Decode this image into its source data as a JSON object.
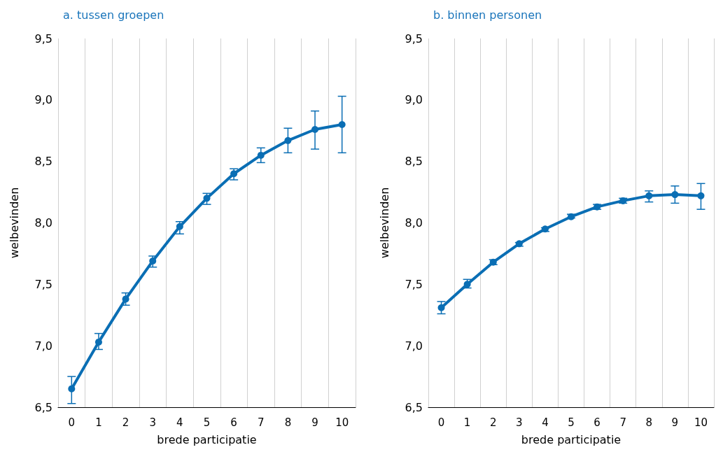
{
  "chart_data": [
    {
      "type": "line",
      "title": "a. tussen groepen",
      "xlabel": "brede participatie",
      "ylabel": "welbevinden",
      "categories": [
        "0",
        "1",
        "2",
        "3",
        "4",
        "5",
        "6",
        "7",
        "8",
        "9",
        "10"
      ],
      "series": [
        {
          "color": "#0a6eb4",
          "values": [
            6.65,
            7.03,
            7.38,
            7.69,
            7.97,
            8.2,
            8.4,
            8.55,
            8.67,
            8.76,
            8.8
          ],
          "errors": [
            [
              6.53,
              6.75
            ],
            [
              6.97,
              7.1
            ],
            [
              7.33,
              7.43
            ],
            [
              7.64,
              7.73
            ],
            [
              7.91,
              8.01
            ],
            [
              8.15,
              8.24
            ],
            [
              8.35,
              8.44
            ],
            [
              8.49,
              8.61
            ],
            [
              8.57,
              8.77
            ],
            [
              8.6,
              8.91
            ],
            [
              8.57,
              9.03
            ]
          ]
        }
      ],
      "ylim": [
        6.5,
        9.5
      ],
      "yticks": [
        {
          "value": 6.5,
          "label": "6,5"
        },
        {
          "value": 7,
          "label": "7,0"
        },
        {
          "value": 7.5,
          "label": "7,5"
        },
        {
          "value": 8,
          "label": "8,0"
        },
        {
          "value": 8.5,
          "label": "8,5"
        },
        {
          "value": 9,
          "label": "9,0"
        },
        {
          "value": 9.5,
          "label": "9,5"
        }
      ],
      "grid": "x",
      "marker": "circle",
      "line_style": "solid"
    },
    {
      "type": "line",
      "title": "b. binnen personen",
      "xlabel": "brede participatie",
      "ylabel": "welbevinden",
      "categories": [
        "0",
        "1",
        "2",
        "3",
        "4",
        "5",
        "6",
        "7",
        "8",
        "9",
        "10"
      ],
      "series": [
        {
          "color": "#0a6eb4",
          "values": [
            7.31,
            7.5,
            7.68,
            7.83,
            7.95,
            8.05,
            8.13,
            8.18,
            8.22,
            8.23,
            8.22
          ],
          "errors": [
            [
              7.26,
              7.36
            ],
            [
              7.47,
              7.54
            ],
            [
              7.66,
              7.7
            ],
            [
              7.81,
              7.84
            ],
            [
              7.93,
              7.96
            ],
            [
              8.04,
              8.07
            ],
            [
              8.11,
              8.15
            ],
            [
              8.16,
              8.2
            ],
            [
              8.17,
              8.26
            ],
            [
              8.16,
              8.3
            ],
            [
              8.11,
              8.32
            ]
          ]
        }
      ],
      "ylim": [
        6.5,
        9.5
      ],
      "yticks": [
        {
          "value": 6.5,
          "label": "6,5"
        },
        {
          "value": 7,
          "label": "7,0"
        },
        {
          "value": 7.5,
          "label": "7,5"
        },
        {
          "value": 8,
          "label": "8,0"
        },
        {
          "value": 8.5,
          "label": "8,5"
        },
        {
          "value": 9,
          "label": "9,0"
        },
        {
          "value": 9.5,
          "label": "9,5"
        }
      ],
      "grid": "x",
      "marker": "circle",
      "line_style": "solid"
    }
  ]
}
